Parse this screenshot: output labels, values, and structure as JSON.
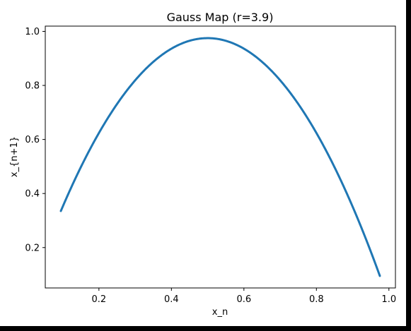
{
  "chart_data": {
    "type": "scatter",
    "title": "Gauss Map (r=3.9)",
    "xlabel": "x_n",
    "ylabel": "x_{n+1}",
    "xlim": [
      0.052,
      1.018
    ],
    "ylim": [
      0.0505,
      1.0195
    ],
    "xticks": [
      0.2,
      0.4,
      0.6,
      0.8,
      1.0
    ],
    "xtick_labels": [
      "0.2",
      "0.4",
      "0.6",
      "0.8",
      "1.0"
    ],
    "yticks": [
      0.2,
      0.4,
      0.6,
      0.8,
      1.0
    ],
    "ytick_labels": [
      "0.2",
      "0.4",
      "0.6",
      "0.8",
      "1.0"
    ],
    "grid": false,
    "legend": false,
    "series_color": "#1f77b4",
    "r": 3.9,
    "x_range": [
      0.095,
      0.975
    ],
    "curve_peak": {
      "x": 0.5,
      "y": 0.975
    }
  }
}
